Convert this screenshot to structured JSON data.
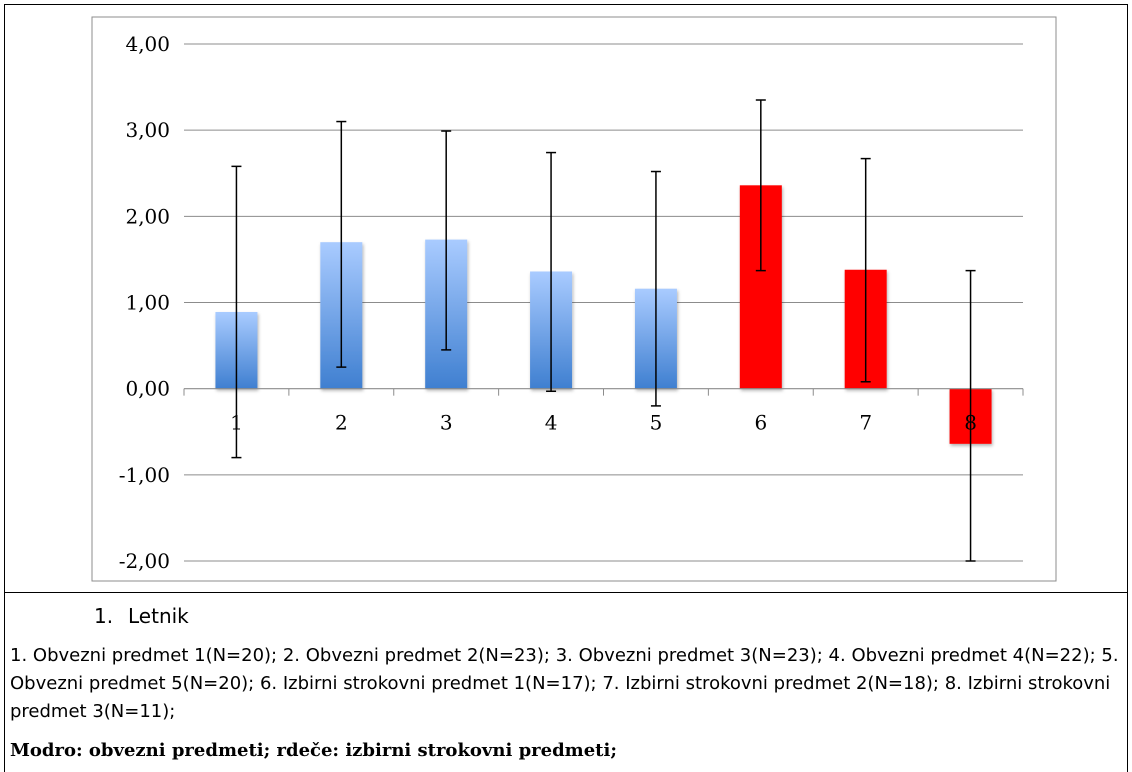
{
  "chart_data": {
    "type": "bar",
    "categories": [
      "1",
      "2",
      "3",
      "4",
      "5",
      "6",
      "7",
      "8"
    ],
    "values": [
      0.89,
      1.7,
      1.73,
      1.36,
      1.16,
      2.36,
      1.38,
      -0.64
    ],
    "error_low": [
      -0.8,
      0.25,
      0.45,
      -0.03,
      -0.2,
      1.37,
      0.08,
      -2.0
    ],
    "error_high": [
      2.58,
      3.1,
      2.99,
      2.74,
      2.52,
      3.35,
      2.67,
      1.37
    ],
    "bar_colors": [
      "#5b8fd6",
      "#5b8fd6",
      "#5b8fd6",
      "#5b8fd6",
      "#5b8fd6",
      "#ff0000",
      "#ff0000",
      "#ff0000"
    ],
    "ylim": [
      -2.0,
      4.0
    ],
    "yticks": [
      "4,00",
      "3,00",
      "2,00",
      "1,00",
      "0,00",
      "-1,00",
      "-2,00"
    ],
    "ytick_values": [
      4,
      3,
      2,
      1,
      0,
      -1,
      -2
    ],
    "grid": true,
    "legend": "none"
  },
  "caption": {
    "heading_num": "1.",
    "heading_text": "Letnik",
    "description": "1. Obvezni predmet 1(N=20); 2. Obvezni predmet 2(N=23); 3. Obvezni predmet 3(N=23); 4. Obvezni predmet 4(N=22); 5. Obvezni predmet 5(N=20); 6. Izbirni strokovni predmet 1(N=17); 7. Izbirni strokovni predmet 2(N=18); 8. Izbirni strokovni predmet 3(N=11);",
    "note": "Modro: obvezni predmeti; rdeče: izbirni strokovni predmeti;"
  }
}
